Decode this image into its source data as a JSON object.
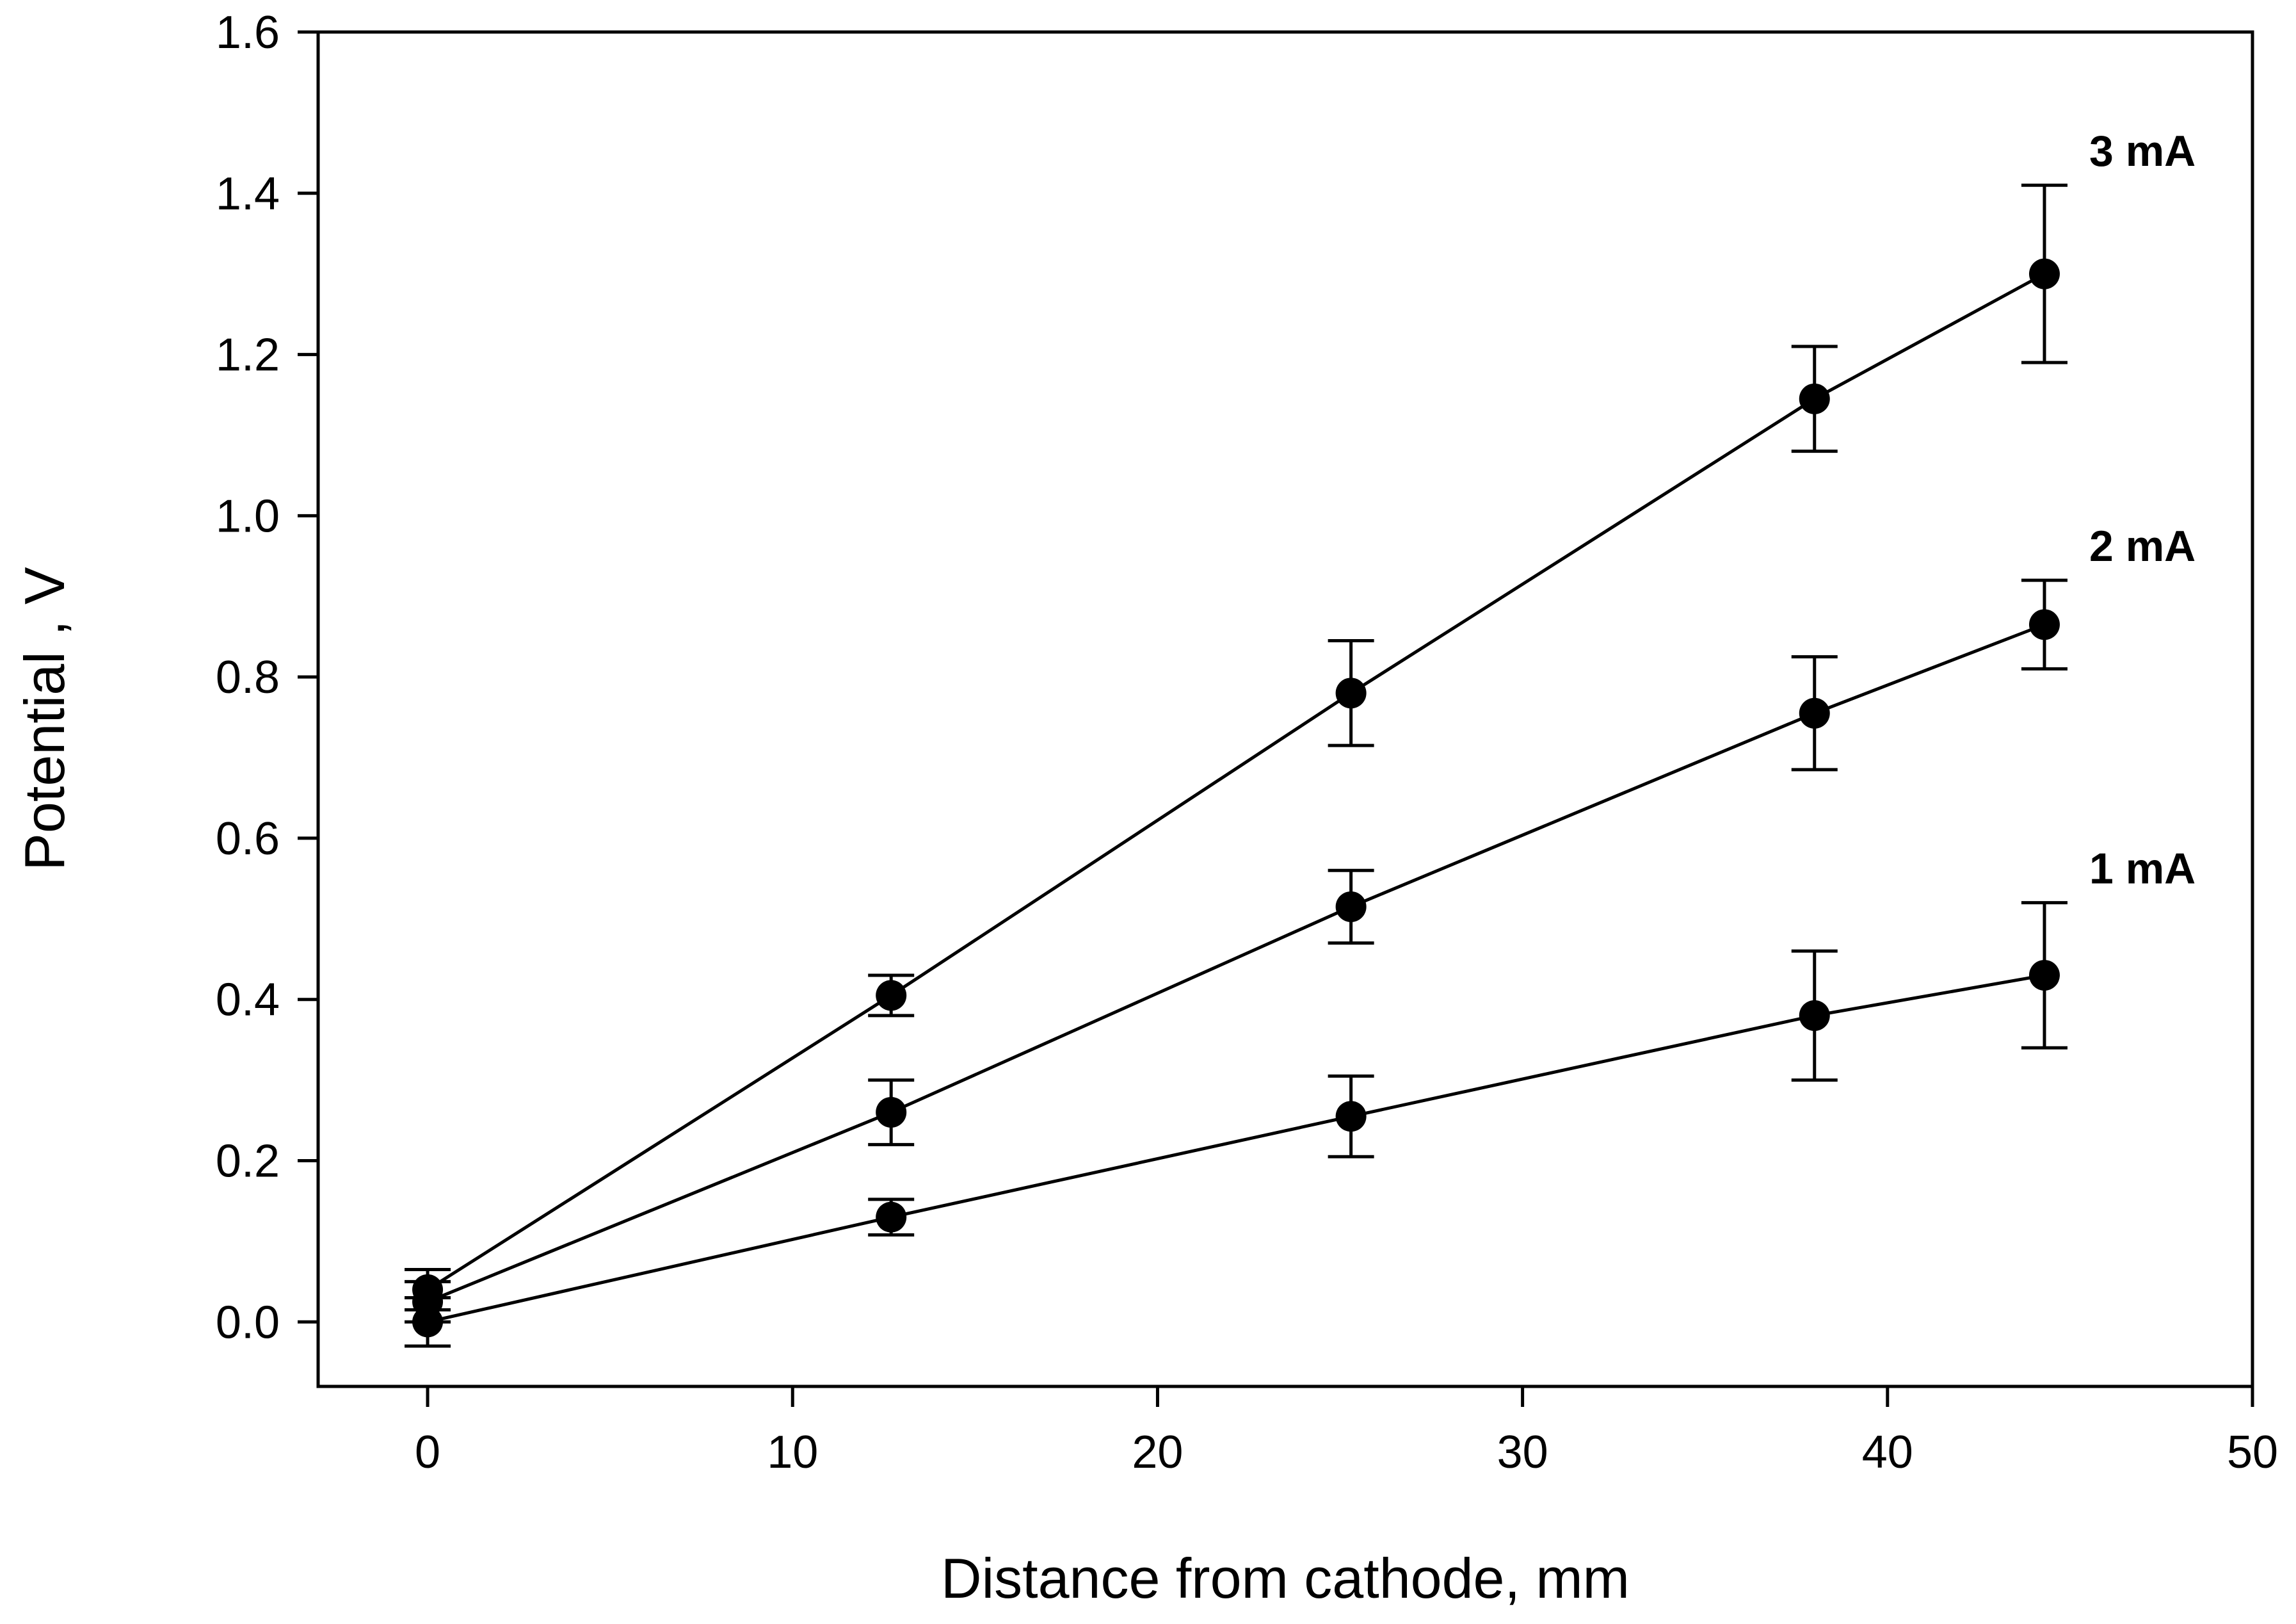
{
  "chart_data": {
    "type": "line",
    "title": "",
    "xlabel": "Distance from cathode, mm",
    "ylabel": "Potential , V",
    "xlim": [
      -3,
      50
    ],
    "ylim": [
      -0.08,
      1.6
    ],
    "xticks": [
      0,
      10,
      20,
      30,
      40,
      50
    ],
    "xtick_labels": [
      "0",
      "10",
      "20",
      "30",
      "40",
      "50"
    ],
    "yticks": [
      0.0,
      0.2,
      0.4,
      0.6,
      0.8,
      1.0,
      1.2,
      1.4,
      1.6
    ],
    "ytick_labels": [
      "0.0",
      "0.2",
      "0.4",
      "0.6",
      "0.8",
      "1.0",
      "1.2",
      "1.4",
      "1.6"
    ],
    "grid": false,
    "legend": "inline labels at right end of each series",
    "x": [
      0,
      12.7,
      25.3,
      38,
      44.3
    ],
    "series": [
      {
        "name": "3 mA",
        "values": [
          0.04,
          0.405,
          0.78,
          1.145,
          1.3
        ],
        "errors": [
          0.025,
          0.025,
          0.065,
          0.065,
          0.11
        ]
      },
      {
        "name": "2 mA",
        "values": [
          0.025,
          0.26,
          0.515,
          0.755,
          0.865
        ],
        "errors": [
          0.025,
          0.04,
          0.045,
          0.07,
          0.055
        ]
      },
      {
        "name": "1 mA",
        "values": [
          0.0,
          0.13,
          0.255,
          0.38,
          0.43
        ],
        "errors": [
          0.03,
          0.022,
          0.05,
          0.08,
          0.09
        ]
      }
    ]
  }
}
